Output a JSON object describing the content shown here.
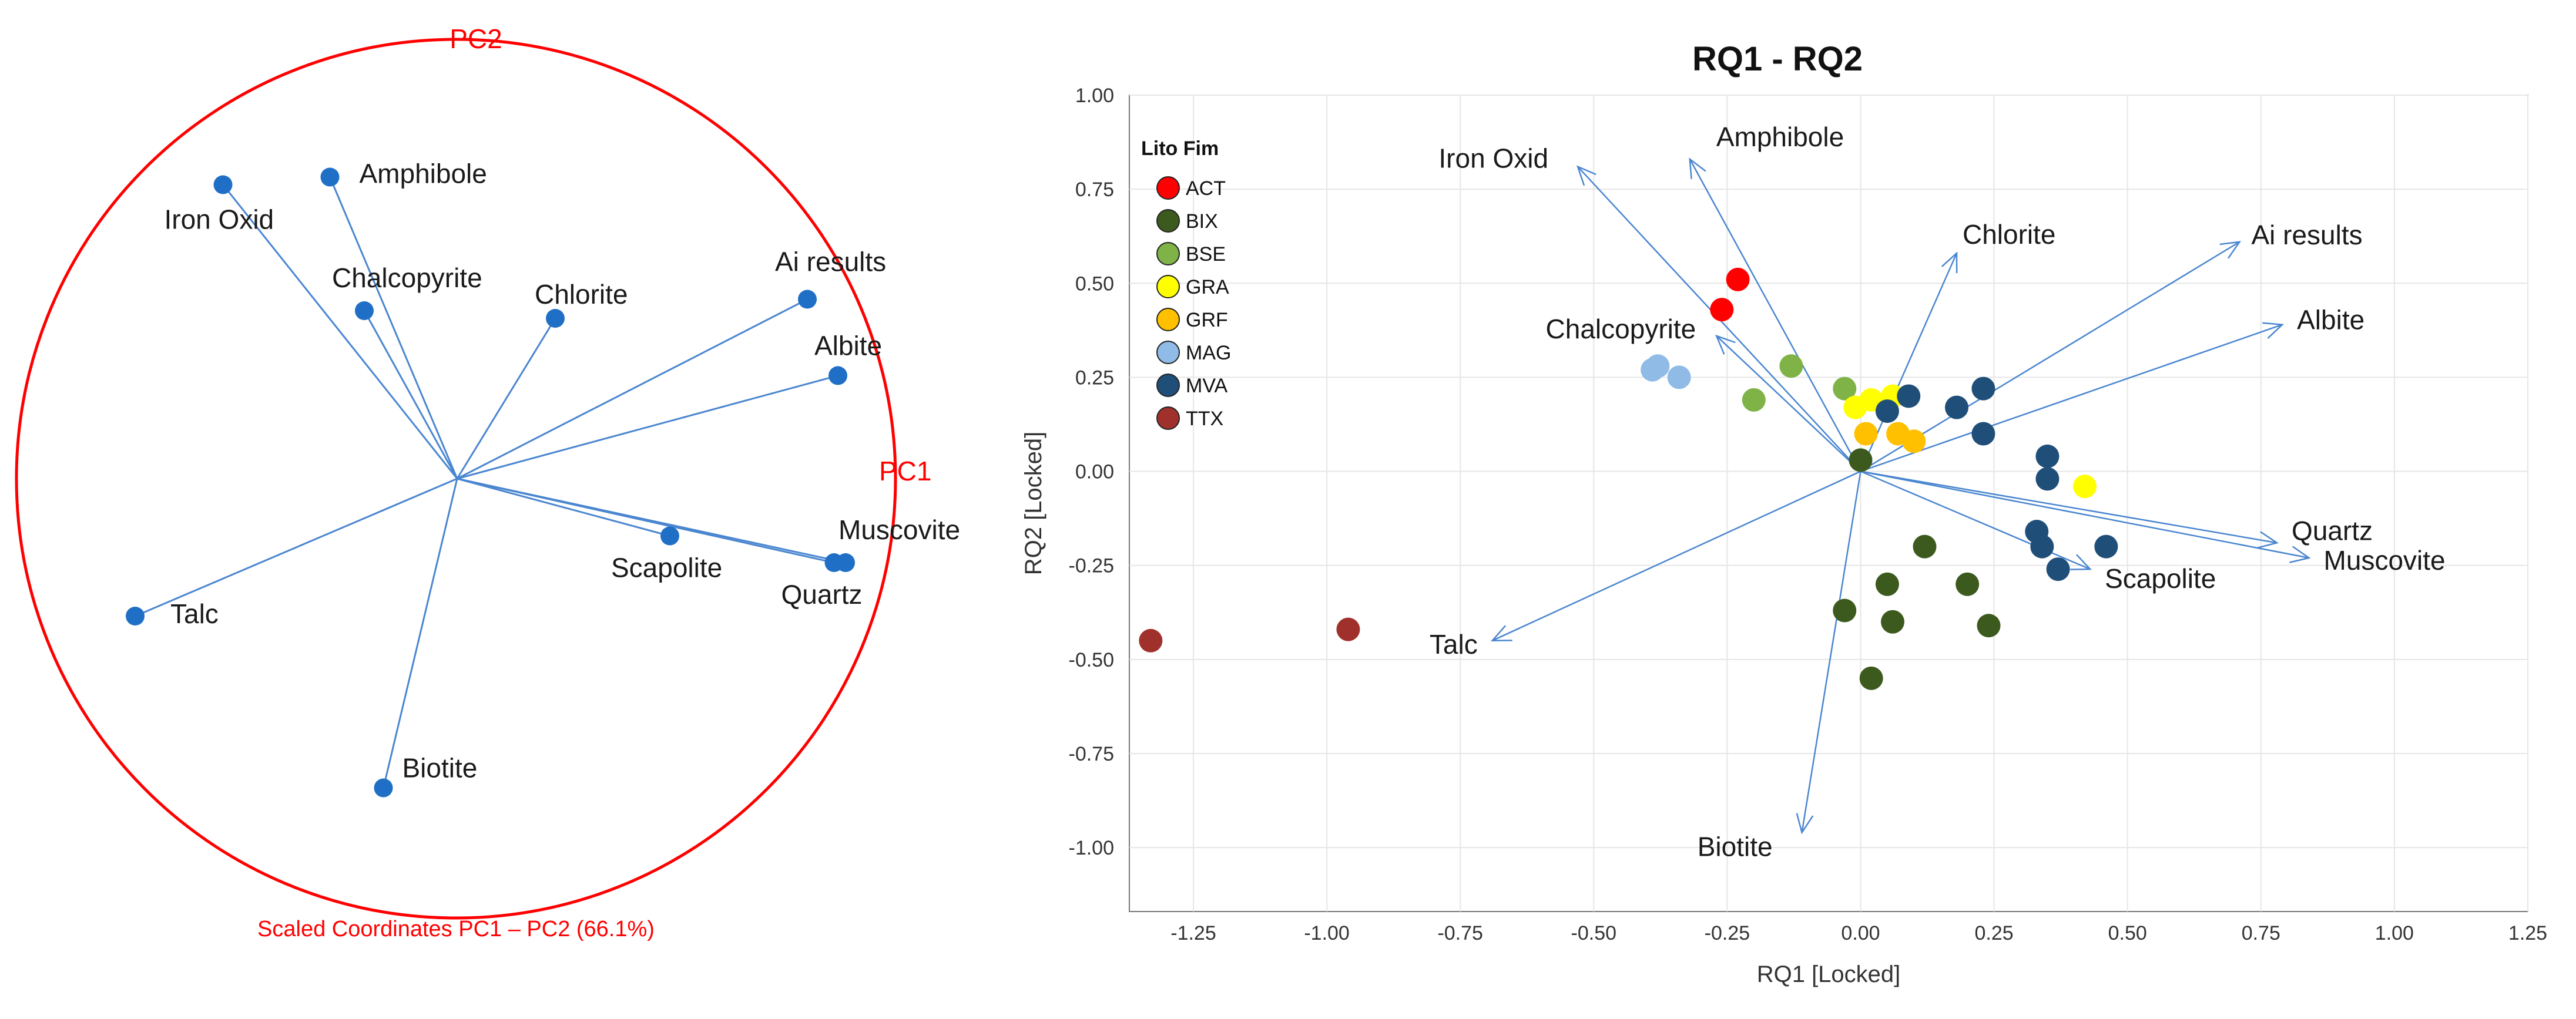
{
  "chart_data": [
    {
      "type": "scatter",
      "subtype": "correlation-circle",
      "title": "Scaled Coordinates PC1 – PC2 (66.1%)",
      "xlabel": "PC1",
      "ylabel": "PC2",
      "xlim": [
        -1,
        1
      ],
      "ylim": [
        -1,
        1
      ],
      "grid": false,
      "colors": {
        "circle": "#ff0000",
        "point": "#1f6fc6",
        "vector": "#4a86d0"
      },
      "variables": [
        {
          "name": "Amphibole",
          "x": -0.33,
          "y": 0.79
        },
        {
          "name": "Iron Oxid",
          "x": -0.61,
          "y": 0.77
        },
        {
          "name": "Chalcopyrite",
          "x": -0.24,
          "y": 0.44
        },
        {
          "name": "Chlorite",
          "x": 0.26,
          "y": 0.42
        },
        {
          "name": "Ai results",
          "x": 0.92,
          "y": 0.47
        },
        {
          "name": "Albite",
          "x": 1.0,
          "y": 0.27
        },
        {
          "name": "Muscovite",
          "x": 1.02,
          "y": -0.22
        },
        {
          "name": "Quartz",
          "x": 0.99,
          "y": -0.22
        },
        {
          "name": "Scapolite",
          "x": 0.56,
          "y": -0.15
        },
        {
          "name": "Talc",
          "x": -0.84,
          "y": -0.36
        },
        {
          "name": "Biotite",
          "x": -0.19,
          "y": -0.81
        }
      ]
    },
    {
      "type": "scatter",
      "subtype": "biplot",
      "title": "RQ1 - RQ2",
      "xlabel": "RQ1 [Locked]",
      "ylabel": "RQ2 [Locked]",
      "xlim": [
        -1.37,
        1.25
      ],
      "ylim": [
        -1.17,
        1.0
      ],
      "xticks": [
        -1.25,
        -1.0,
        -0.75,
        -0.5,
        -0.25,
        0.0,
        0.25,
        0.5,
        0.75,
        1.0,
        1.25
      ],
      "yticks": [
        1.0,
        0.75,
        0.5,
        0.25,
        0.0,
        -0.25,
        -0.5,
        -0.75,
        -1.0
      ],
      "xtick_labels": [
        "-1.25",
        "-1.00",
        "-0.75",
        "-0.50",
        "-0.25",
        "0.00",
        "0.25",
        "0.50",
        "0.75",
        "1.00",
        "1.25"
      ],
      "ytick_labels": [
        "1.00",
        "0.75",
        "0.50",
        "0.25",
        "0.00",
        "-0.25",
        "-0.50",
        "-0.75",
        "-1.00"
      ],
      "grid": true,
      "legend": {
        "title": "Lito Fim",
        "position": "top-left",
        "entries": [
          {
            "name": "ACT",
            "color": "#ff0000"
          },
          {
            "name": "BIX",
            "color": "#3d5a1e"
          },
          {
            "name": "BSE",
            "color": "#7fb347"
          },
          {
            "name": "GRA",
            "color": "#ffff00"
          },
          {
            "name": "GRF",
            "color": "#ffc000"
          },
          {
            "name": "MAG",
            "color": "#8fbbe6"
          },
          {
            "name": "MVA",
            "color": "#1f4e79"
          },
          {
            "name": "TTX",
            "color": "#a0302b"
          }
        ]
      },
      "vector_color": "#4a86d0",
      "vectors": [
        {
          "name": "Iron Oxid",
          "x": -0.53,
          "y": 0.81,
          "label_anchor": "end"
        },
        {
          "name": "Amphibole",
          "x": -0.32,
          "y": 0.83,
          "label_anchor": "start"
        },
        {
          "name": "Chlorite",
          "x": 0.18,
          "y": 0.58,
          "label_anchor": "start"
        },
        {
          "name": "Ai results",
          "x": 0.71,
          "y": 0.61,
          "label_anchor": "start"
        },
        {
          "name": "Chalcopyrite",
          "x": -0.27,
          "y": 0.36,
          "label_anchor": "end"
        },
        {
          "name": "Albite",
          "x": 0.79,
          "y": 0.39,
          "label_anchor": "start"
        },
        {
          "name": "Quartz",
          "x": 0.78,
          "y": -0.19,
          "label_anchor": "start"
        },
        {
          "name": "Muscovite",
          "x": 0.84,
          "y": -0.23,
          "label_anchor": "start"
        },
        {
          "name": "Scapolite",
          "x": 0.43,
          "y": -0.26,
          "label_anchor": "start"
        },
        {
          "name": "Talc",
          "x": -0.69,
          "y": -0.45,
          "label_anchor": "end"
        },
        {
          "name": "Biotite",
          "x": -0.11,
          "y": -0.96,
          "label_anchor": "end"
        }
      ],
      "points": [
        {
          "group": "ACT",
          "x": -0.23,
          "y": 0.51
        },
        {
          "group": "ACT",
          "x": -0.26,
          "y": 0.43
        },
        {
          "group": "BIX",
          "x": 0.12,
          "y": -0.2
        },
        {
          "group": "BIX",
          "x": 0.05,
          "y": -0.3
        },
        {
          "group": "BIX",
          "x": 0.2,
          "y": -0.3
        },
        {
          "group": "BIX",
          "x": -0.03,
          "y": -0.37
        },
        {
          "group": "BIX",
          "x": 0.06,
          "y": -0.4
        },
        {
          "group": "BIX",
          "x": 0.24,
          "y": -0.41
        },
        {
          "group": "BIX",
          "x": 0.02,
          "y": -0.55
        },
        {
          "group": "BIX",
          "x": 0.0,
          "y": 0.03
        },
        {
          "group": "BSE",
          "x": -0.13,
          "y": 0.28
        },
        {
          "group": "BSE",
          "x": -0.2,
          "y": 0.19
        },
        {
          "group": "BSE",
          "x": -0.03,
          "y": 0.22
        },
        {
          "group": "GRA",
          "x": 0.02,
          "y": 0.19
        },
        {
          "group": "GRA",
          "x": -0.01,
          "y": 0.17
        },
        {
          "group": "GRA",
          "x": 0.06,
          "y": 0.2
        },
        {
          "group": "GRA",
          "x": 0.42,
          "y": -0.04
        },
        {
          "group": "GRF",
          "x": 0.01,
          "y": 0.1
        },
        {
          "group": "GRF",
          "x": 0.07,
          "y": 0.1
        },
        {
          "group": "GRF",
          "x": 0.1,
          "y": 0.08
        },
        {
          "group": "MAG",
          "x": -0.39,
          "y": 0.27
        },
        {
          "group": "MAG",
          "x": -0.38,
          "y": 0.28
        },
        {
          "group": "MAG",
          "x": -0.34,
          "y": 0.25
        },
        {
          "group": "MVA",
          "x": 0.09,
          "y": 0.2
        },
        {
          "group": "MVA",
          "x": 0.05,
          "y": 0.16
        },
        {
          "group": "MVA",
          "x": 0.18,
          "y": 0.17
        },
        {
          "group": "MVA",
          "x": 0.23,
          "y": 0.22
        },
        {
          "group": "MVA",
          "x": 0.23,
          "y": 0.1
        },
        {
          "group": "MVA",
          "x": 0.35,
          "y": 0.04
        },
        {
          "group": "MVA",
          "x": 0.35,
          "y": -0.02
        },
        {
          "group": "MVA",
          "x": 0.33,
          "y": -0.16
        },
        {
          "group": "MVA",
          "x": 0.34,
          "y": -0.2
        },
        {
          "group": "MVA",
          "x": 0.46,
          "y": -0.2
        },
        {
          "group": "MVA",
          "x": 0.37,
          "y": -0.26
        },
        {
          "group": "TTX",
          "x": -1.33,
          "y": -0.45
        },
        {
          "group": "TTX",
          "x": -0.96,
          "y": -0.42
        }
      ]
    }
  ]
}
